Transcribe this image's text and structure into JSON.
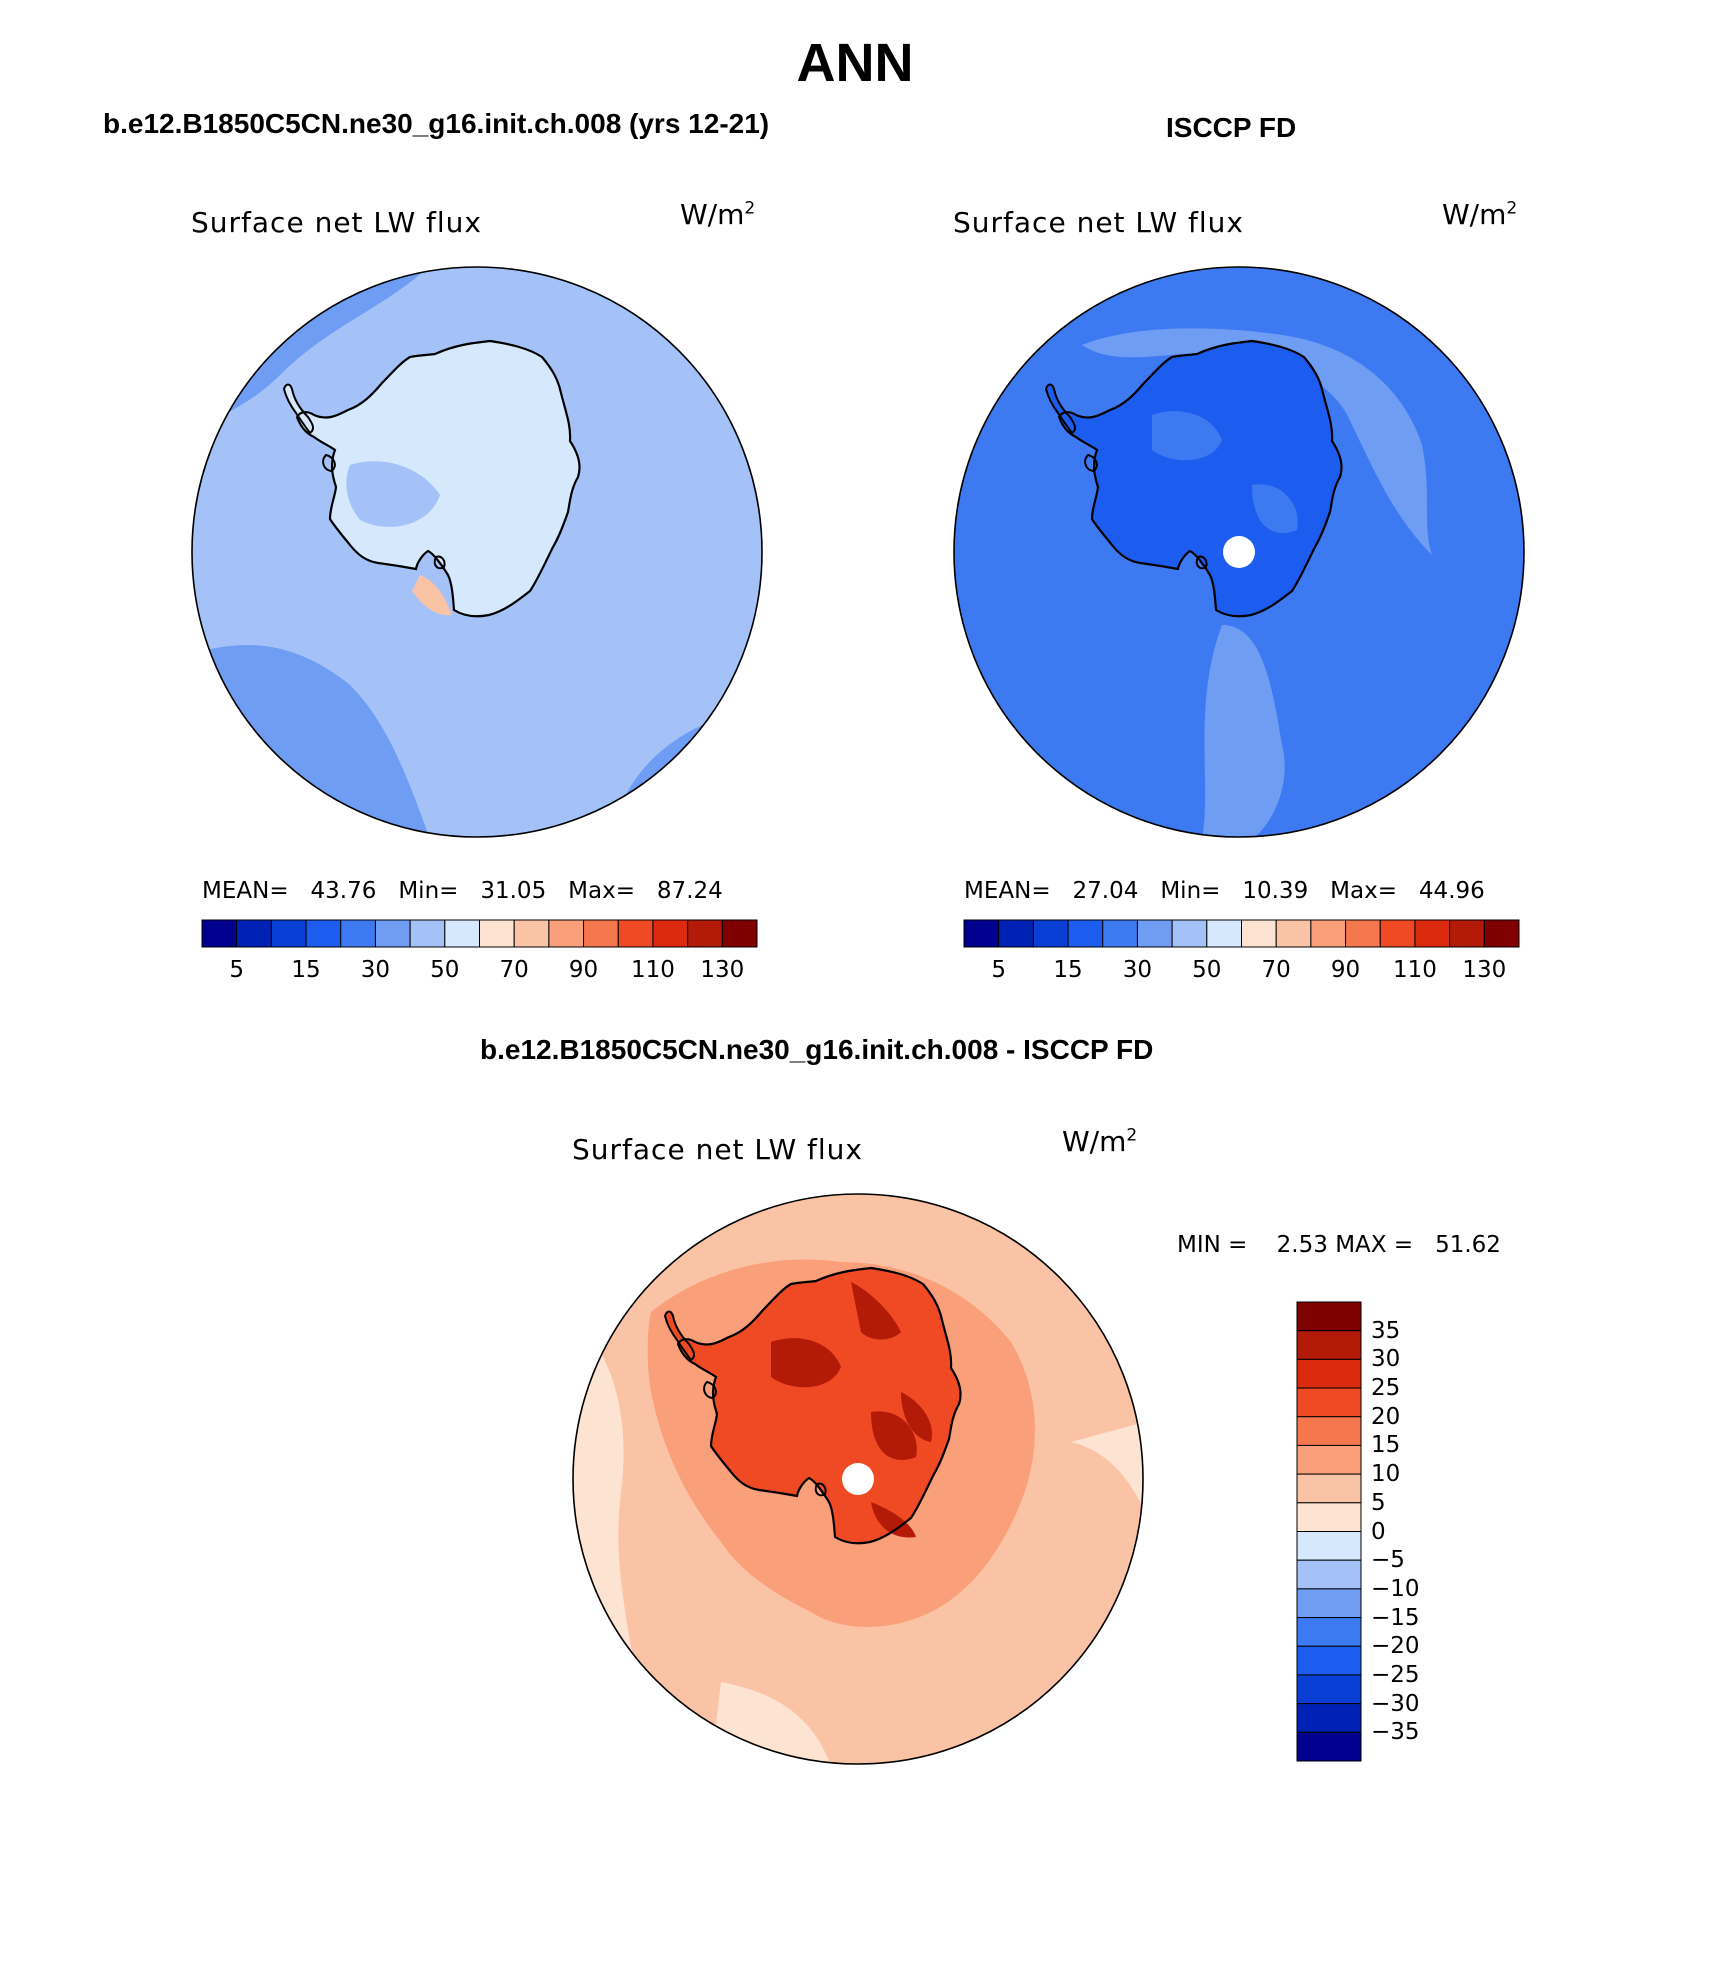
{
  "page": {
    "title": "ANN"
  },
  "panels": [
    {
      "id": "model",
      "heading": "b.e12.B1850C5CN.ne30_g16.init.ch.008 (yrs 12-21)",
      "plot_label": "Surface net LW flux",
      "unit": "W/m",
      "unit_exp": "2",
      "stats": {
        "mean_label": "MEAN=",
        "mean": "43.76",
        "min_label": "Min=",
        "min": "31.05",
        "max_label": "Max=",
        "max": "87.24"
      }
    },
    {
      "id": "obs",
      "heading": "ISCCP FD",
      "plot_label": "Surface net LW flux",
      "unit": "W/m",
      "unit_exp": "2",
      "stats": {
        "mean_label": "MEAN=",
        "mean": "27.04",
        "min_label": "Min=",
        "min": "10.39",
        "max_label": "Max=",
        "max": "44.96"
      }
    },
    {
      "id": "diff",
      "heading": "b.e12.B1850C5CN.ne30_g16.init.ch.008 - ISCCP FD",
      "plot_label": "Surface net LW flux",
      "unit": "W/m",
      "unit_exp": "2",
      "stats": {
        "min_label": "MIN =",
        "min": "2.53",
        "max_label": "MAX =",
        "max": "51.62"
      }
    }
  ],
  "colorbars": {
    "field": {
      "colors": [
        "#00008f",
        "#0022b4",
        "#0a3fd6",
        "#1c5cef",
        "#3d7af2",
        "#6f9df3",
        "#a4c2f7",
        "#d6e8fb",
        "#fde4d2",
        "#fbc3a6",
        "#f9a07a",
        "#f5774d",
        "#ef4a24",
        "#dc2a0e",
        "#b31a08",
        "#800000"
      ],
      "labels": [
        "5",
        "15",
        "30",
        "50",
        "70",
        "90",
        "110",
        "130"
      ]
    },
    "diff": {
      "colors": [
        "#800000",
        "#b31a08",
        "#dc2a0e",
        "#ef4a24",
        "#f5774d",
        "#f9a07a",
        "#fbc3a6",
        "#fde4d2",
        "#d6e8fb",
        "#a4c2f7",
        "#6f9df3",
        "#3d7af2",
        "#1c5cef",
        "#0a3fd6",
        "#0022b4",
        "#00008f"
      ],
      "labels": [
        "35",
        "30",
        "25",
        "20",
        "15",
        "10",
        "5",
        "0",
        "−5",
        "−10",
        "−15",
        "−20",
        "−25",
        "−30",
        "−35"
      ]
    }
  },
  "map": {
    "projection": "south-polar-stereographic",
    "region": "Antarctica",
    "colors": {
      "model_ocean": "#a4c2f7",
      "model_ocean_dark": "#6f9df3",
      "model_land": "#d6e8fb",
      "model_warm": "#fbc3a6",
      "obs_ocean": "#3d7af2",
      "obs_ocean_light": "#6f9df3",
      "obs_land": "#1c5cef",
      "obs_land_light": "#3d7af2",
      "diff_ocean": "#fbc3a6",
      "diff_ocean_light": "#fde4d2",
      "diff_coast": "#f9a07a",
      "diff_land": "#ef4a24",
      "diff_land_dark": "#b31a08",
      "pole_mask": "#ffffff",
      "coast": "#000000"
    }
  }
}
